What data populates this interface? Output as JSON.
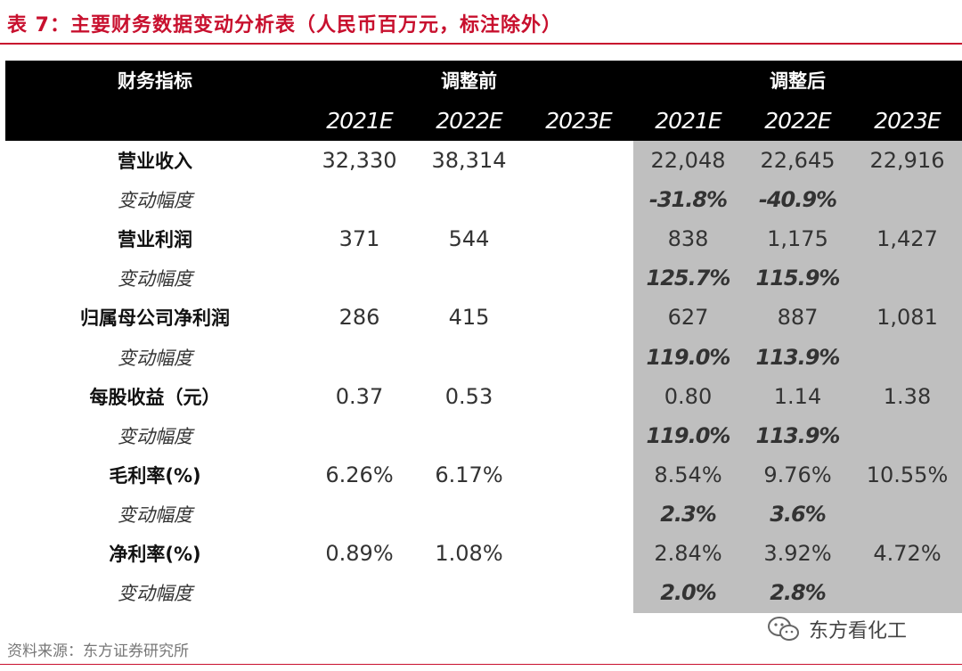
{
  "title": "表 7：主要财务数据变动分析表（人民币百万元，标注除外）",
  "header": {
    "metric_label": "财务指标",
    "group_before": "调整前",
    "group_after": "调整后",
    "years": [
      "2021E",
      "2022E",
      "2023E",
      "2021E",
      "2022E",
      "2023E"
    ]
  },
  "rows": [
    {
      "label": "营业收入",
      "type": "metric",
      "values": [
        "32,330",
        "38,314",
        "",
        "22,048",
        "22,645",
        "22,916"
      ]
    },
    {
      "label": "变动幅度",
      "type": "change",
      "values": [
        "",
        "",
        "",
        "-31.8%",
        "-40.9%",
        ""
      ]
    },
    {
      "label": "营业利润",
      "type": "metric",
      "values": [
        "371",
        "544",
        "",
        "838",
        "1,175",
        "1,427"
      ]
    },
    {
      "label": "变动幅度",
      "type": "change",
      "values": [
        "",
        "",
        "",
        "125.7%",
        "115.9%",
        ""
      ]
    },
    {
      "label": "归属母公司净利润",
      "type": "metric",
      "values": [
        "286",
        "415",
        "",
        "627",
        "887",
        "1,081"
      ]
    },
    {
      "label": "变动幅度",
      "type": "change",
      "values": [
        "",
        "",
        "",
        "119.0%",
        "113.9%",
        ""
      ]
    },
    {
      "label": "每股收益（元）",
      "type": "metric",
      "values": [
        "0.37",
        "0.53",
        "",
        "0.80",
        "1.14",
        "1.38"
      ]
    },
    {
      "label": "变动幅度",
      "type": "change",
      "values": [
        "",
        "",
        "",
        "119.0%",
        "113.9%",
        ""
      ]
    },
    {
      "label": "毛利率(%)",
      "type": "metric",
      "values": [
        "6.26%",
        "6.17%",
        "",
        "8.54%",
        "9.76%",
        "10.55%"
      ]
    },
    {
      "label": "变动幅度",
      "type": "change",
      "values": [
        "",
        "",
        "",
        "2.3%",
        "3.6%",
        ""
      ]
    },
    {
      "label": "净利率(%)",
      "type": "metric",
      "values": [
        "0.89%",
        "1.08%",
        "",
        "2.84%",
        "3.92%",
        "4.72%"
      ]
    },
    {
      "label": "变动幅度",
      "type": "change",
      "values": [
        "",
        "",
        "",
        "2.0%",
        "2.8%",
        ""
      ]
    }
  ],
  "source": "资料来源：东方证券研究所",
  "watermark": {
    "text": "东方看化工",
    "icon": "wechat-icon"
  },
  "colors": {
    "accent": "#c8102e",
    "header_bg": "#000000",
    "shade": "#bfbfbf"
  }
}
